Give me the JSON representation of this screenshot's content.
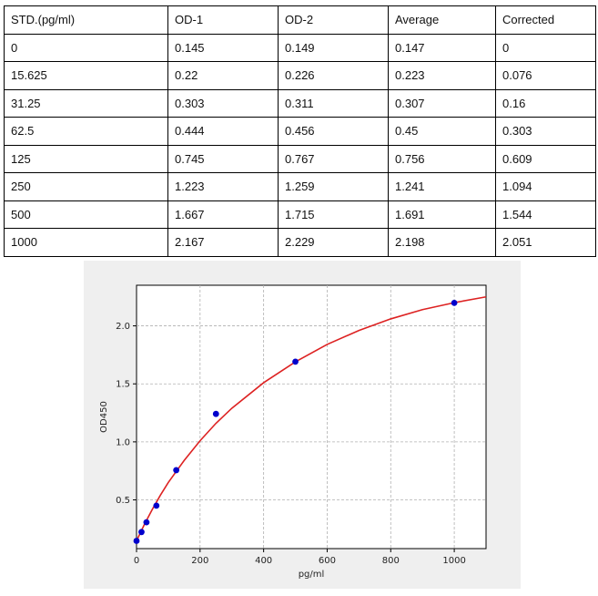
{
  "table": {
    "headers": [
      "STD.(pg/ml)",
      "OD-1",
      "OD-2",
      "Average",
      "Corrected"
    ],
    "rows": [
      [
        "0",
        "0.145",
        "0.149",
        "0.147",
        "0"
      ],
      [
        "15.625",
        "0.22",
        "0.226",
        "0.223",
        "0.076"
      ],
      [
        "31.25",
        "0.303",
        "0.311",
        "0.307",
        "0.16"
      ],
      [
        "62.5",
        "0.444",
        "0.456",
        "0.45",
        "0.303"
      ],
      [
        "125",
        "0.745",
        "0.767",
        "0.756",
        "0.609"
      ],
      [
        "250",
        "1.223",
        "1.259",
        "1.241",
        "1.094"
      ],
      [
        "500",
        "1.667",
        "1.715",
        "1.691",
        "1.544"
      ],
      [
        "1000",
        "2.167",
        "2.229",
        "2.198",
        "2.051"
      ]
    ]
  },
  "chart_data": {
    "type": "scatter",
    "xlabel": "pg/ml",
    "ylabel": "OD450",
    "xlim": [
      0,
      1100
    ],
    "ylim": [
      0.08,
      2.35
    ],
    "xticks": [
      0,
      200,
      400,
      600,
      800,
      1000
    ],
    "xtick_labels": [
      "0",
      "200",
      "400",
      "600",
      "800",
      "1000"
    ],
    "yticks": [
      0.5,
      1.0,
      1.5,
      2.0
    ],
    "ytick_labels": [
      "0.5",
      "1.0",
      "1.5",
      "2.0"
    ],
    "grid": true,
    "series": [
      {
        "kind": "points",
        "color": "#0000cc",
        "x": [
          0,
          15.625,
          31.25,
          62.5,
          125,
          250,
          500,
          1000
        ],
        "y": [
          0.147,
          0.223,
          0.307,
          0.45,
          0.756,
          1.241,
          1.691,
          2.198
        ]
      },
      {
        "kind": "fit-curve",
        "color": "#dd2222",
        "x": [
          0,
          25,
          50,
          75,
          100,
          150,
          200,
          250,
          300,
          400,
          500,
          600,
          700,
          800,
          900,
          1000,
          1100
        ],
        "y": [
          0.147,
          0.29,
          0.42,
          0.54,
          0.65,
          0.84,
          1.01,
          1.16,
          1.29,
          1.51,
          1.69,
          1.84,
          1.96,
          2.06,
          2.14,
          2.2,
          2.25
        ]
      }
    ]
  }
}
